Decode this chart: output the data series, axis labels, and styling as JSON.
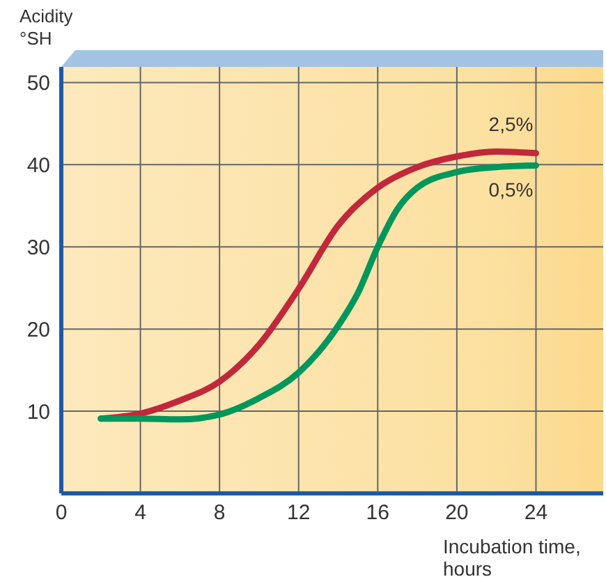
{
  "chart_data": {
    "type": "line",
    "ylabel": "Acidity °SH",
    "xlabel": "Incubation time, hours",
    "xlim": [
      0,
      27.4
    ],
    "xticks": [
      0,
      4,
      8,
      12,
      16,
      20,
      24
    ],
    "ylim": [
      0,
      51.9
    ],
    "yticks": [
      10,
      20,
      30,
      40,
      50
    ],
    "grid": true,
    "marker": "none",
    "line_style": "solid",
    "series": [
      {
        "name": "2,5%",
        "color": "#c1283b",
        "x": [
          2,
          4,
          6,
          8,
          10,
          12,
          14,
          16,
          18,
          20,
          22,
          24
        ],
        "values": [
          9.1,
          9.7,
          11.3,
          13.6,
          18.1,
          24.9,
          32.6,
          37.2,
          39.7,
          41,
          41.6,
          41.4
        ]
      },
      {
        "name": "0,5%",
        "color": "#00975c",
        "x": [
          2,
          4,
          6,
          8,
          10,
          12,
          14,
          15,
          16,
          17,
          18,
          20,
          22,
          24
        ],
        "values": [
          9.1,
          9.1,
          9,
          9.6,
          11.6,
          14.7,
          20.4,
          24.4,
          30,
          34.6,
          37.2,
          39.1,
          39.7,
          39.9
        ]
      }
    ]
  }
}
